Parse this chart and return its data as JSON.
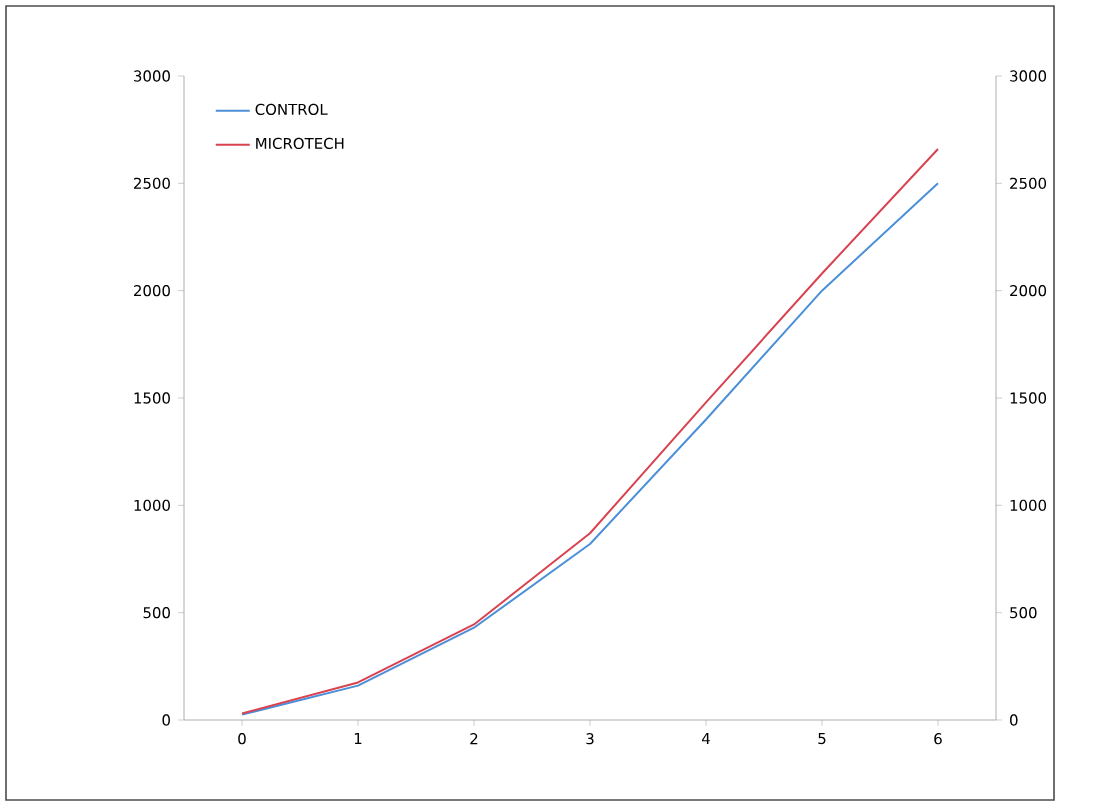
{
  "chart_data": {
    "type": "line",
    "categories": [
      "0",
      "1",
      "2",
      "3",
      "4",
      "5",
      "6"
    ],
    "series": [
      {
        "name": "CONTROL",
        "color": "#4a8fd8",
        "values": [
          25,
          160,
          430,
          820,
          1400,
          2000,
          2500
        ]
      },
      {
        "name": "MICROTECH",
        "color": "#d9424f",
        "values": [
          30,
          175,
          445,
          870,
          1480,
          2080,
          2660
        ]
      }
    ],
    "ylim": [
      0,
      3000
    ],
    "yticks": [
      0,
      500,
      1000,
      1500,
      2000,
      2500,
      3000
    ],
    "y2lim": [
      0,
      3000
    ],
    "y2ticks": [
      0,
      500,
      1000,
      1500,
      2000,
      2500,
      3000
    ],
    "grid": false,
    "legend": "top left",
    "marker": "none",
    "line_style": "solid"
  }
}
